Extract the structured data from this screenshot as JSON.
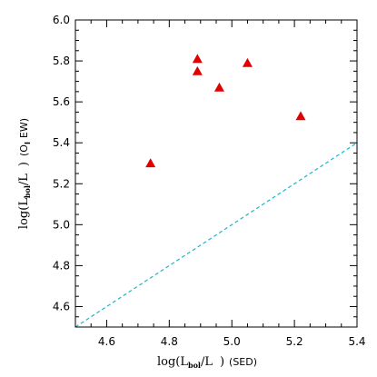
{
  "chart_data": {
    "type": "scatter",
    "title": "",
    "xlabel": {
      "prefix": "log(L",
      "sub": "bol",
      "mid": "/L",
      "suffix": ")",
      "note": "(SED)"
    },
    "ylabel": {
      "prefix": "log(L",
      "sub": "bol",
      "mid": "/L",
      "suffix": ")",
      "note": "(O",
      "note_sub": "I",
      "note_end": "EW)"
    },
    "xlim": [
      4.5,
      5.4
    ],
    "ylim": [
      4.5,
      6.0
    ],
    "x_ticks": [
      "4.6",
      "4.8",
      "5.0",
      "5.2",
      "5.4"
    ],
    "y_ticks": [
      "4.6",
      "4.8",
      "5.0",
      "5.2",
      "5.4",
      "5.6",
      "5.8",
      "6.0"
    ],
    "grid": false,
    "series": [
      {
        "marker": "triangle",
        "color": "#e00000",
        "points": [
          {
            "x": 4.74,
            "y": 5.3
          },
          {
            "x": 4.89,
            "y": 5.81
          },
          {
            "x": 4.89,
            "y": 5.75
          },
          {
            "x": 4.96,
            "y": 5.67
          },
          {
            "x": 5.05,
            "y": 5.79
          },
          {
            "x": 5.22,
            "y": 5.53
          }
        ]
      }
    ],
    "reference_line": {
      "style": "dashed",
      "color": "#1ab6cf",
      "from": {
        "x": 4.5,
        "y": 4.5
      },
      "to": {
        "x": 5.4,
        "y": 5.4
      }
    }
  }
}
